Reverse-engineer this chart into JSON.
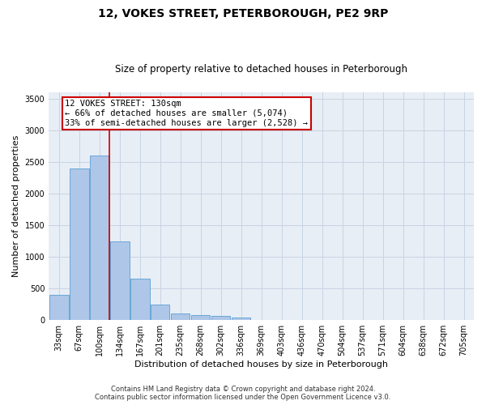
{
  "title": "12, VOKES STREET, PETERBOROUGH, PE2 9RP",
  "subtitle": "Size of property relative to detached houses in Peterborough",
  "xlabel": "Distribution of detached houses by size in Peterborough",
  "ylabel": "Number of detached properties",
  "footer_line1": "Contains HM Land Registry data © Crown copyright and database right 2024.",
  "footer_line2": "Contains public sector information licensed under the Open Government Licence v3.0.",
  "categories": [
    "33sqm",
    "67sqm",
    "100sqm",
    "134sqm",
    "167sqm",
    "201sqm",
    "235sqm",
    "268sqm",
    "302sqm",
    "336sqm",
    "369sqm",
    "403sqm",
    "436sqm",
    "470sqm",
    "504sqm",
    "537sqm",
    "571sqm",
    "604sqm",
    "638sqm",
    "672sqm",
    "705sqm"
  ],
  "values": [
    400,
    2400,
    2600,
    1250,
    650,
    250,
    100,
    75,
    65,
    40,
    0,
    0,
    0,
    0,
    0,
    0,
    0,
    0,
    0,
    0,
    0
  ],
  "bar_color": "#aec6e8",
  "bar_edge_color": "#5a9fd4",
  "vline_x_index": 2,
  "vline_color": "#cc0000",
  "annotation_line1": "12 VOKES STREET: 130sqm",
  "annotation_line2": "← 66% of detached houses are smaller (5,074)",
  "annotation_line3": "33% of semi-detached houses are larger (2,528) →",
  "annotation_box_color": "#ffffff",
  "annotation_box_edge_color": "#cc0000",
  "ylim": [
    0,
    3600
  ],
  "yticks": [
    0,
    500,
    1000,
    1500,
    2000,
    2500,
    3000,
    3500
  ],
  "background_color": "#ffffff",
  "plot_bg_color": "#e8eef5",
  "grid_color": "#c8d4e4",
  "title_fontsize": 10,
  "subtitle_fontsize": 8.5,
  "xlabel_fontsize": 8,
  "ylabel_fontsize": 8,
  "tick_fontsize": 7,
  "annotation_fontsize": 7.5
}
